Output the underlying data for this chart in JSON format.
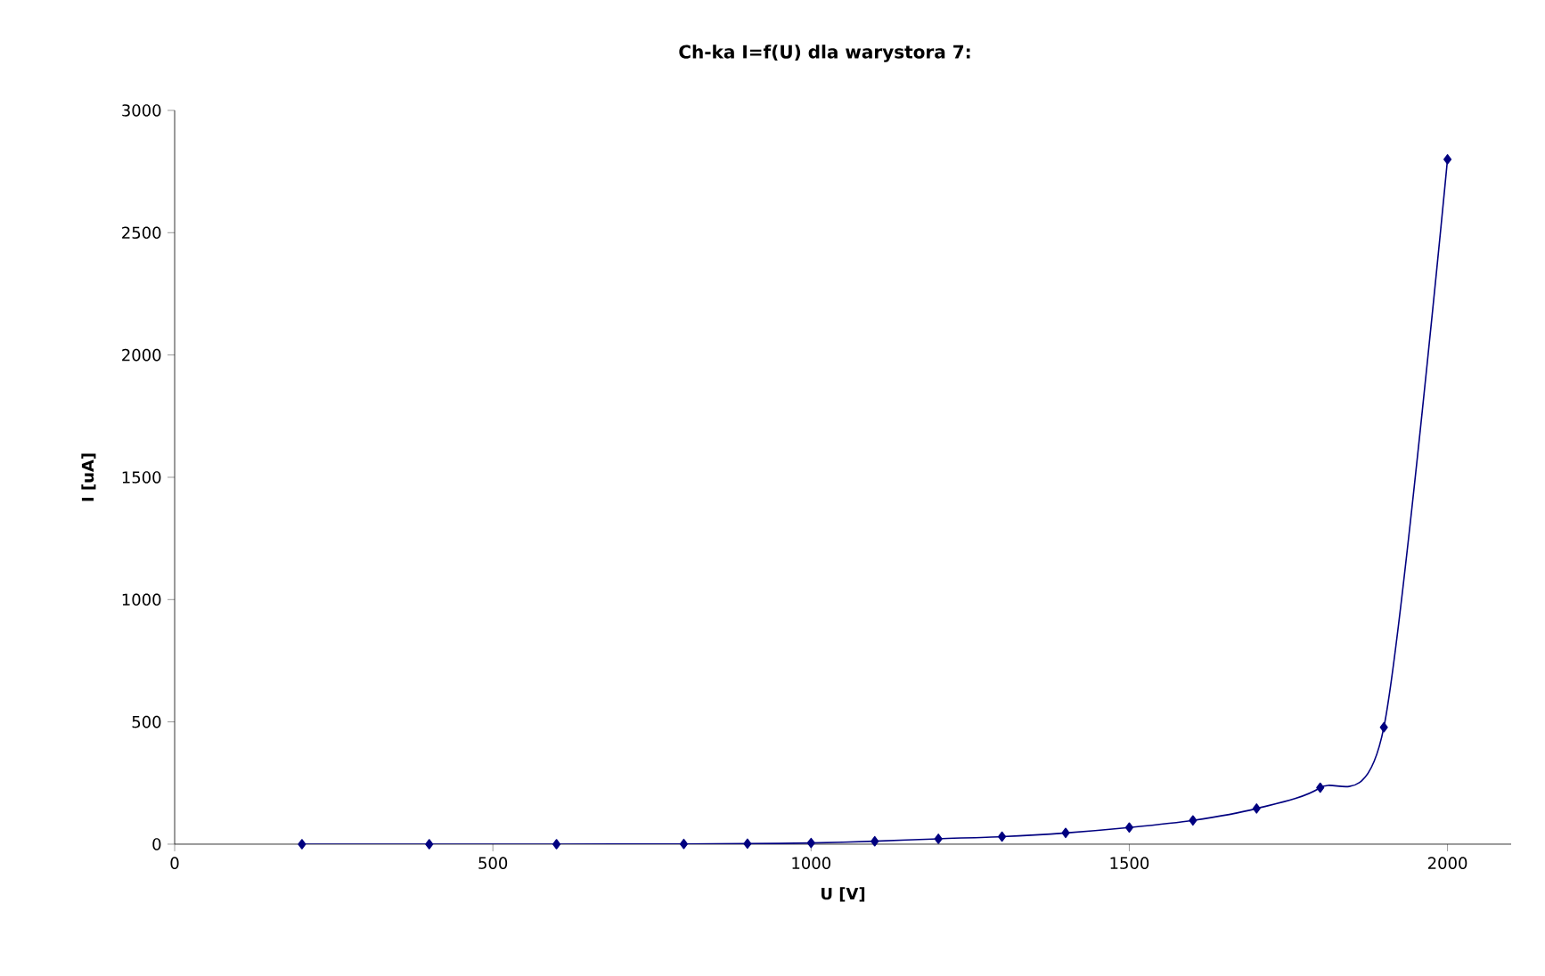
{
  "chart_data": {
    "type": "line",
    "title": "Ch-ka I=f(U) dla warystora 7:",
    "xlabel": "U [V]",
    "ylabel": "I [uA]",
    "x": [
      200,
      400,
      600,
      800,
      900,
      1000,
      1100,
      1200,
      1300,
      1400,
      1500,
      1600,
      1700,
      1800,
      1900,
      2000
    ],
    "series": [
      {
        "color": "#000080",
        "values": [
          0,
          0,
          0,
          1,
          2,
          5,
          12,
          22,
          31,
          46,
          68,
          97,
          146,
          231,
          478,
          2800
        ]
      }
    ],
    "xlim": [
      0,
      2100
    ],
    "xticks": [
      0,
      500,
      1000,
      1500,
      2000
    ],
    "ylim": [
      0,
      3000
    ],
    "yticks": [
      0,
      500,
      1000,
      1500,
      2000,
      2500,
      3000
    ],
    "marker": "diamond",
    "line_style": "solid"
  }
}
